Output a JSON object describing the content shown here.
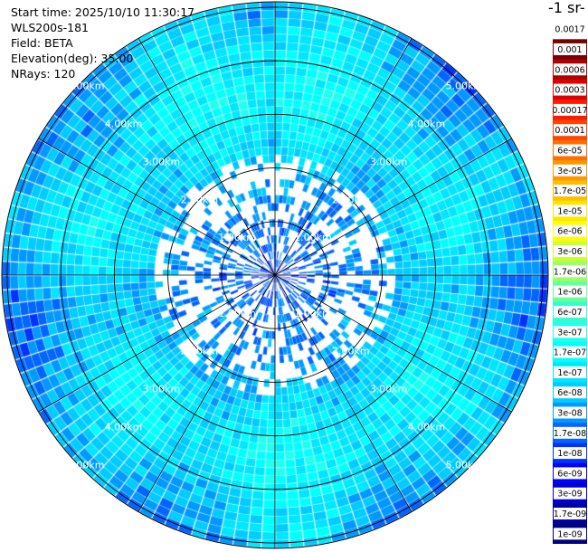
{
  "header": {
    "start_time": "Start time: 2025/10/10 11:30:17",
    "instrument": "WLS200s-181",
    "field": "Field: BETA",
    "elevation": "Elevation(deg): 35.00",
    "nrays": "NRays: 120"
  },
  "chart_data": {
    "type": "heatmap",
    "subtype": "polar-ppi",
    "field": "BETA",
    "elevation_deg": 35.0,
    "n_rays": 120,
    "max_range_km": 5.1,
    "range_ring_labels": [
      "1.00km",
      "2.00km",
      "3.00km",
      "4.00km",
      "5.00km"
    ],
    "range_rings_km": [
      1,
      2,
      3,
      4,
      5
    ],
    "radial_lines_deg": [
      0,
      30,
      60,
      90,
      120,
      150,
      180,
      210,
      240,
      270,
      300,
      330
    ],
    "colorbar": {
      "title": "-1 sr-",
      "scale": "log",
      "tick_labels": [
        "0.0017",
        "0.001",
        "0.0006",
        "0.0003",
        "0.00017",
        "0.0001",
        "6e-05",
        "3e-05",
        "1.7e-05",
        "1e-05",
        "6e-06",
        "3e-06",
        "1.7e-06",
        "1e-06",
        "6e-07",
        "3e-07",
        "1.7e-07",
        "1e-07",
        "6e-08",
        "3e-08",
        "1.7e-08",
        "1e-08",
        "6e-09",
        "3e-09",
        "1.7e-09",
        "1e-09"
      ],
      "colors": [
        "#ffffff",
        "#7a0000",
        "#b00000",
        "#e00000",
        "#ff1a00",
        "#ff4500",
        "#ff6f00",
        "#ff9700",
        "#ffbf00",
        "#ffe600",
        "#ffff00",
        "#ccff33",
        "#99ff66",
        "#66ff99",
        "#33ffcc",
        "#22ffee",
        "#00ffff",
        "#00e6ff",
        "#00ccff",
        "#0099ff",
        "#0066ff",
        "#0033ff",
        "#0000ff",
        "#0000d0",
        "#0000a0",
        "#000080"
      ]
    },
    "radial_profile": [
      {
        "r_km": 0.0,
        "log10_beta": -8.0
      },
      {
        "r_km": 0.5,
        "log10_beta": -7.7
      },
      {
        "r_km": 1.0,
        "log10_beta": -7.6
      },
      {
        "r_km": 1.5,
        "log10_beta": -7.5
      },
      {
        "r_km": 2.0,
        "log10_beta": -7.35
      },
      {
        "r_km": 2.5,
        "log10_beta": -7.1
      },
      {
        "r_km": 3.0,
        "log10_beta": -6.9
      },
      {
        "r_km": 3.5,
        "log10_beta": -6.85
      },
      {
        "r_km": 4.0,
        "log10_beta": -7.0
      },
      {
        "r_km": 4.5,
        "log10_beta": -7.2
      },
      {
        "r_km": 5.0,
        "log10_beta": -7.4
      }
    ]
  }
}
